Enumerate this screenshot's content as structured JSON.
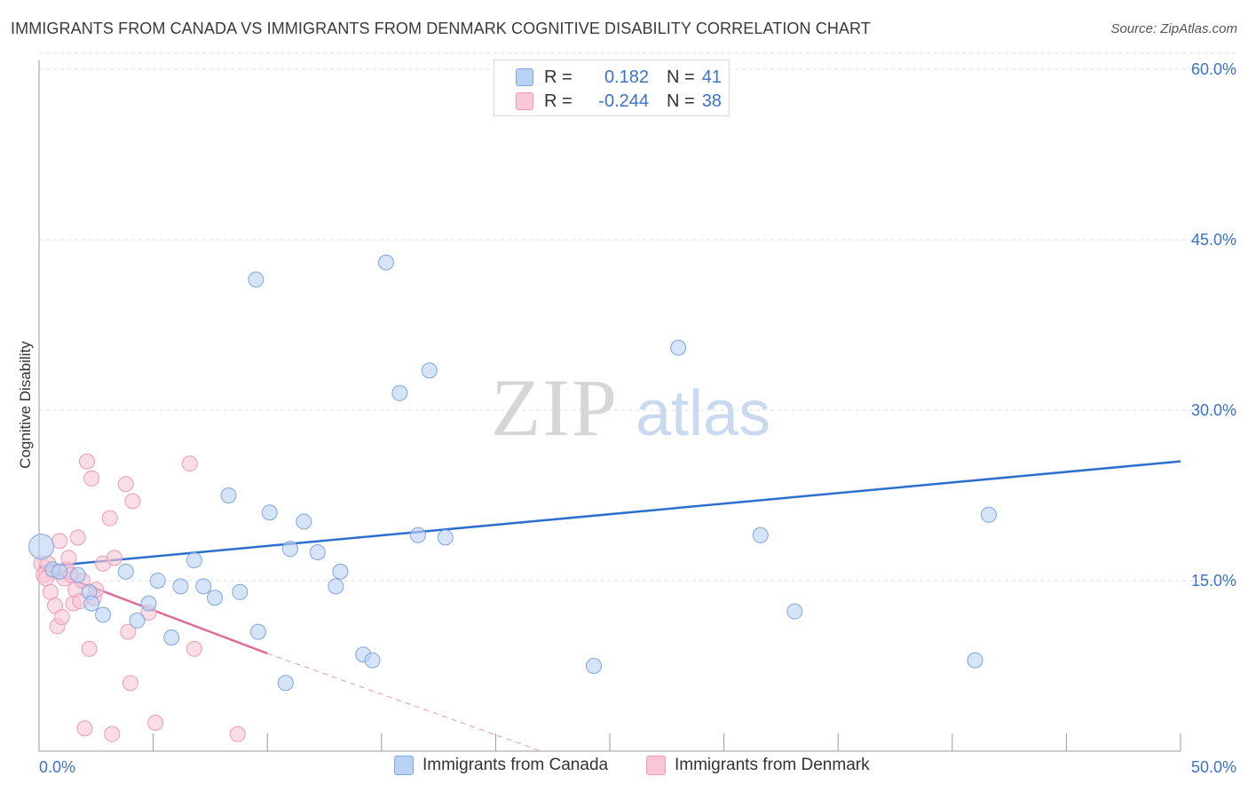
{
  "header": {
    "title": "IMMIGRANTS FROM CANADA VS IMMIGRANTS FROM DENMARK COGNITIVE DISABILITY CORRELATION CHART",
    "source": "Source: ZipAtlas.com"
  },
  "watermark": {
    "zip": "ZIP",
    "atlas": "atlas"
  },
  "legend": {
    "rows": [
      {
        "r_label": "R =",
        "r_value": "0.182",
        "n_label": "N =",
        "n_value": "41"
      },
      {
        "r_label": "R =",
        "r_value": "-0.244",
        "n_label": "N =",
        "n_value": "38"
      }
    ]
  },
  "bottom_legend": {
    "canada": "Immigrants from Canada",
    "denmark": "Immigrants from Denmark"
  },
  "colors": {
    "canada_fill": "#b9d2f3",
    "canada_stroke": "#7ea7e0",
    "canada_line": "#2e6fcc",
    "denmark_fill": "#f8c6d5",
    "denmark_stroke": "#ee9bb6",
    "denmark_line": "#e06b97",
    "axis_label": "#3b72c8",
    "grid": "#dcdcdc"
  },
  "chart_data": {
    "type": "scatter",
    "title": "IMMIGRANTS FROM CANADA VS IMMIGRANTS FROM DENMARK COGNITIVE DISABILITY CORRELATION CHART",
    "xlabel": "",
    "ylabel": "Cognitive Disability",
    "xlim": [
      0,
      50
    ],
    "ylim": [
      0,
      60
    ],
    "x_tick_labels": [
      "0.0%",
      "50.0%"
    ],
    "y_ticks": [
      15,
      30,
      45,
      60
    ],
    "y_tick_labels": [
      "15.0%",
      "30.0%",
      "45.0%",
      "60.0%"
    ],
    "grid": true,
    "legend_position": "top-center",
    "series": [
      {
        "name": "Immigrants from Canada",
        "r": 0.182,
        "n": 41,
        "trend": {
          "x": [
            0,
            50
          ],
          "y": [
            16.2,
            25.5
          ],
          "style": "solid"
        },
        "points": [
          [
            0.1,
            18.0
          ],
          [
            0.6,
            16.0
          ],
          [
            2.2,
            14.0
          ],
          [
            2.3,
            13.0
          ],
          [
            2.8,
            12.0
          ],
          [
            3.8,
            15.8
          ],
          [
            4.3,
            11.5
          ],
          [
            4.8,
            13.0
          ],
          [
            5.2,
            15.0
          ],
          [
            5.8,
            10.0
          ],
          [
            6.2,
            14.5
          ],
          [
            6.8,
            16.8
          ],
          [
            7.2,
            14.5
          ],
          [
            7.7,
            13.5
          ],
          [
            8.3,
            22.5
          ],
          [
            8.8,
            14.0
          ],
          [
            9.5,
            41.5
          ],
          [
            9.6,
            10.5
          ],
          [
            10.1,
            21.0
          ],
          [
            10.8,
            6.0
          ],
          [
            11.0,
            17.8
          ],
          [
            11.6,
            20.2
          ],
          [
            12.2,
            17.5
          ],
          [
            13.0,
            14.5
          ],
          [
            13.2,
            15.8
          ],
          [
            14.2,
            8.5
          ],
          [
            14.6,
            8.0
          ],
          [
            15.2,
            43.0
          ],
          [
            15.8,
            31.5
          ],
          [
            16.6,
            19.0
          ],
          [
            17.1,
            33.5
          ],
          [
            17.8,
            18.8
          ],
          [
            20.5,
            58.0
          ],
          [
            24.3,
            7.5
          ],
          [
            28.0,
            35.5
          ],
          [
            31.6,
            19.0
          ],
          [
            33.1,
            12.3
          ],
          [
            41.0,
            8.0
          ],
          [
            41.6,
            20.8
          ],
          [
            1.7,
            15.5
          ],
          [
            0.9,
            15.8
          ]
        ]
      },
      {
        "name": "Immigrants from Denmark",
        "r": -0.244,
        "n": 38,
        "trend": {
          "x": [
            0,
            10
          ],
          "y": [
            16.2,
            8.6
          ],
          "style": "solid",
          "extension": {
            "x": [
              10,
              22
            ],
            "y": [
              8.6,
              0
            ]
          },
          "extension_style": "dashed"
        },
        "points": [
          [
            0.1,
            16.5
          ],
          [
            0.2,
            15.5
          ],
          [
            0.4,
            16.5
          ],
          [
            0.5,
            14.0
          ],
          [
            0.6,
            15.8
          ],
          [
            0.7,
            12.8
          ],
          [
            0.8,
            11.0
          ],
          [
            0.9,
            18.5
          ],
          [
            1.0,
            11.8
          ],
          [
            1.1,
            15.2
          ],
          [
            1.2,
            16.0
          ],
          [
            1.3,
            17.0
          ],
          [
            1.4,
            15.5
          ],
          [
            1.5,
            13.0
          ],
          [
            1.6,
            14.2
          ],
          [
            1.7,
            18.8
          ],
          [
            1.8,
            13.2
          ],
          [
            1.9,
            15.0
          ],
          [
            2.0,
            2.0
          ],
          [
            2.1,
            25.5
          ],
          [
            2.2,
            9.0
          ],
          [
            2.3,
            24.0
          ],
          [
            2.4,
            13.5
          ],
          [
            2.5,
            14.2
          ],
          [
            2.8,
            16.5
          ],
          [
            3.1,
            20.5
          ],
          [
            3.2,
            1.5
          ],
          [
            3.3,
            17.0
          ],
          [
            3.8,
            23.5
          ],
          [
            3.9,
            10.5
          ],
          [
            4.0,
            6.0
          ],
          [
            4.1,
            22.0
          ],
          [
            4.8,
            12.2
          ],
          [
            5.1,
            2.5
          ],
          [
            6.6,
            25.3
          ],
          [
            6.8,
            9.0
          ],
          [
            8.7,
            1.5
          ],
          [
            0.3,
            15.2
          ]
        ]
      }
    ]
  }
}
